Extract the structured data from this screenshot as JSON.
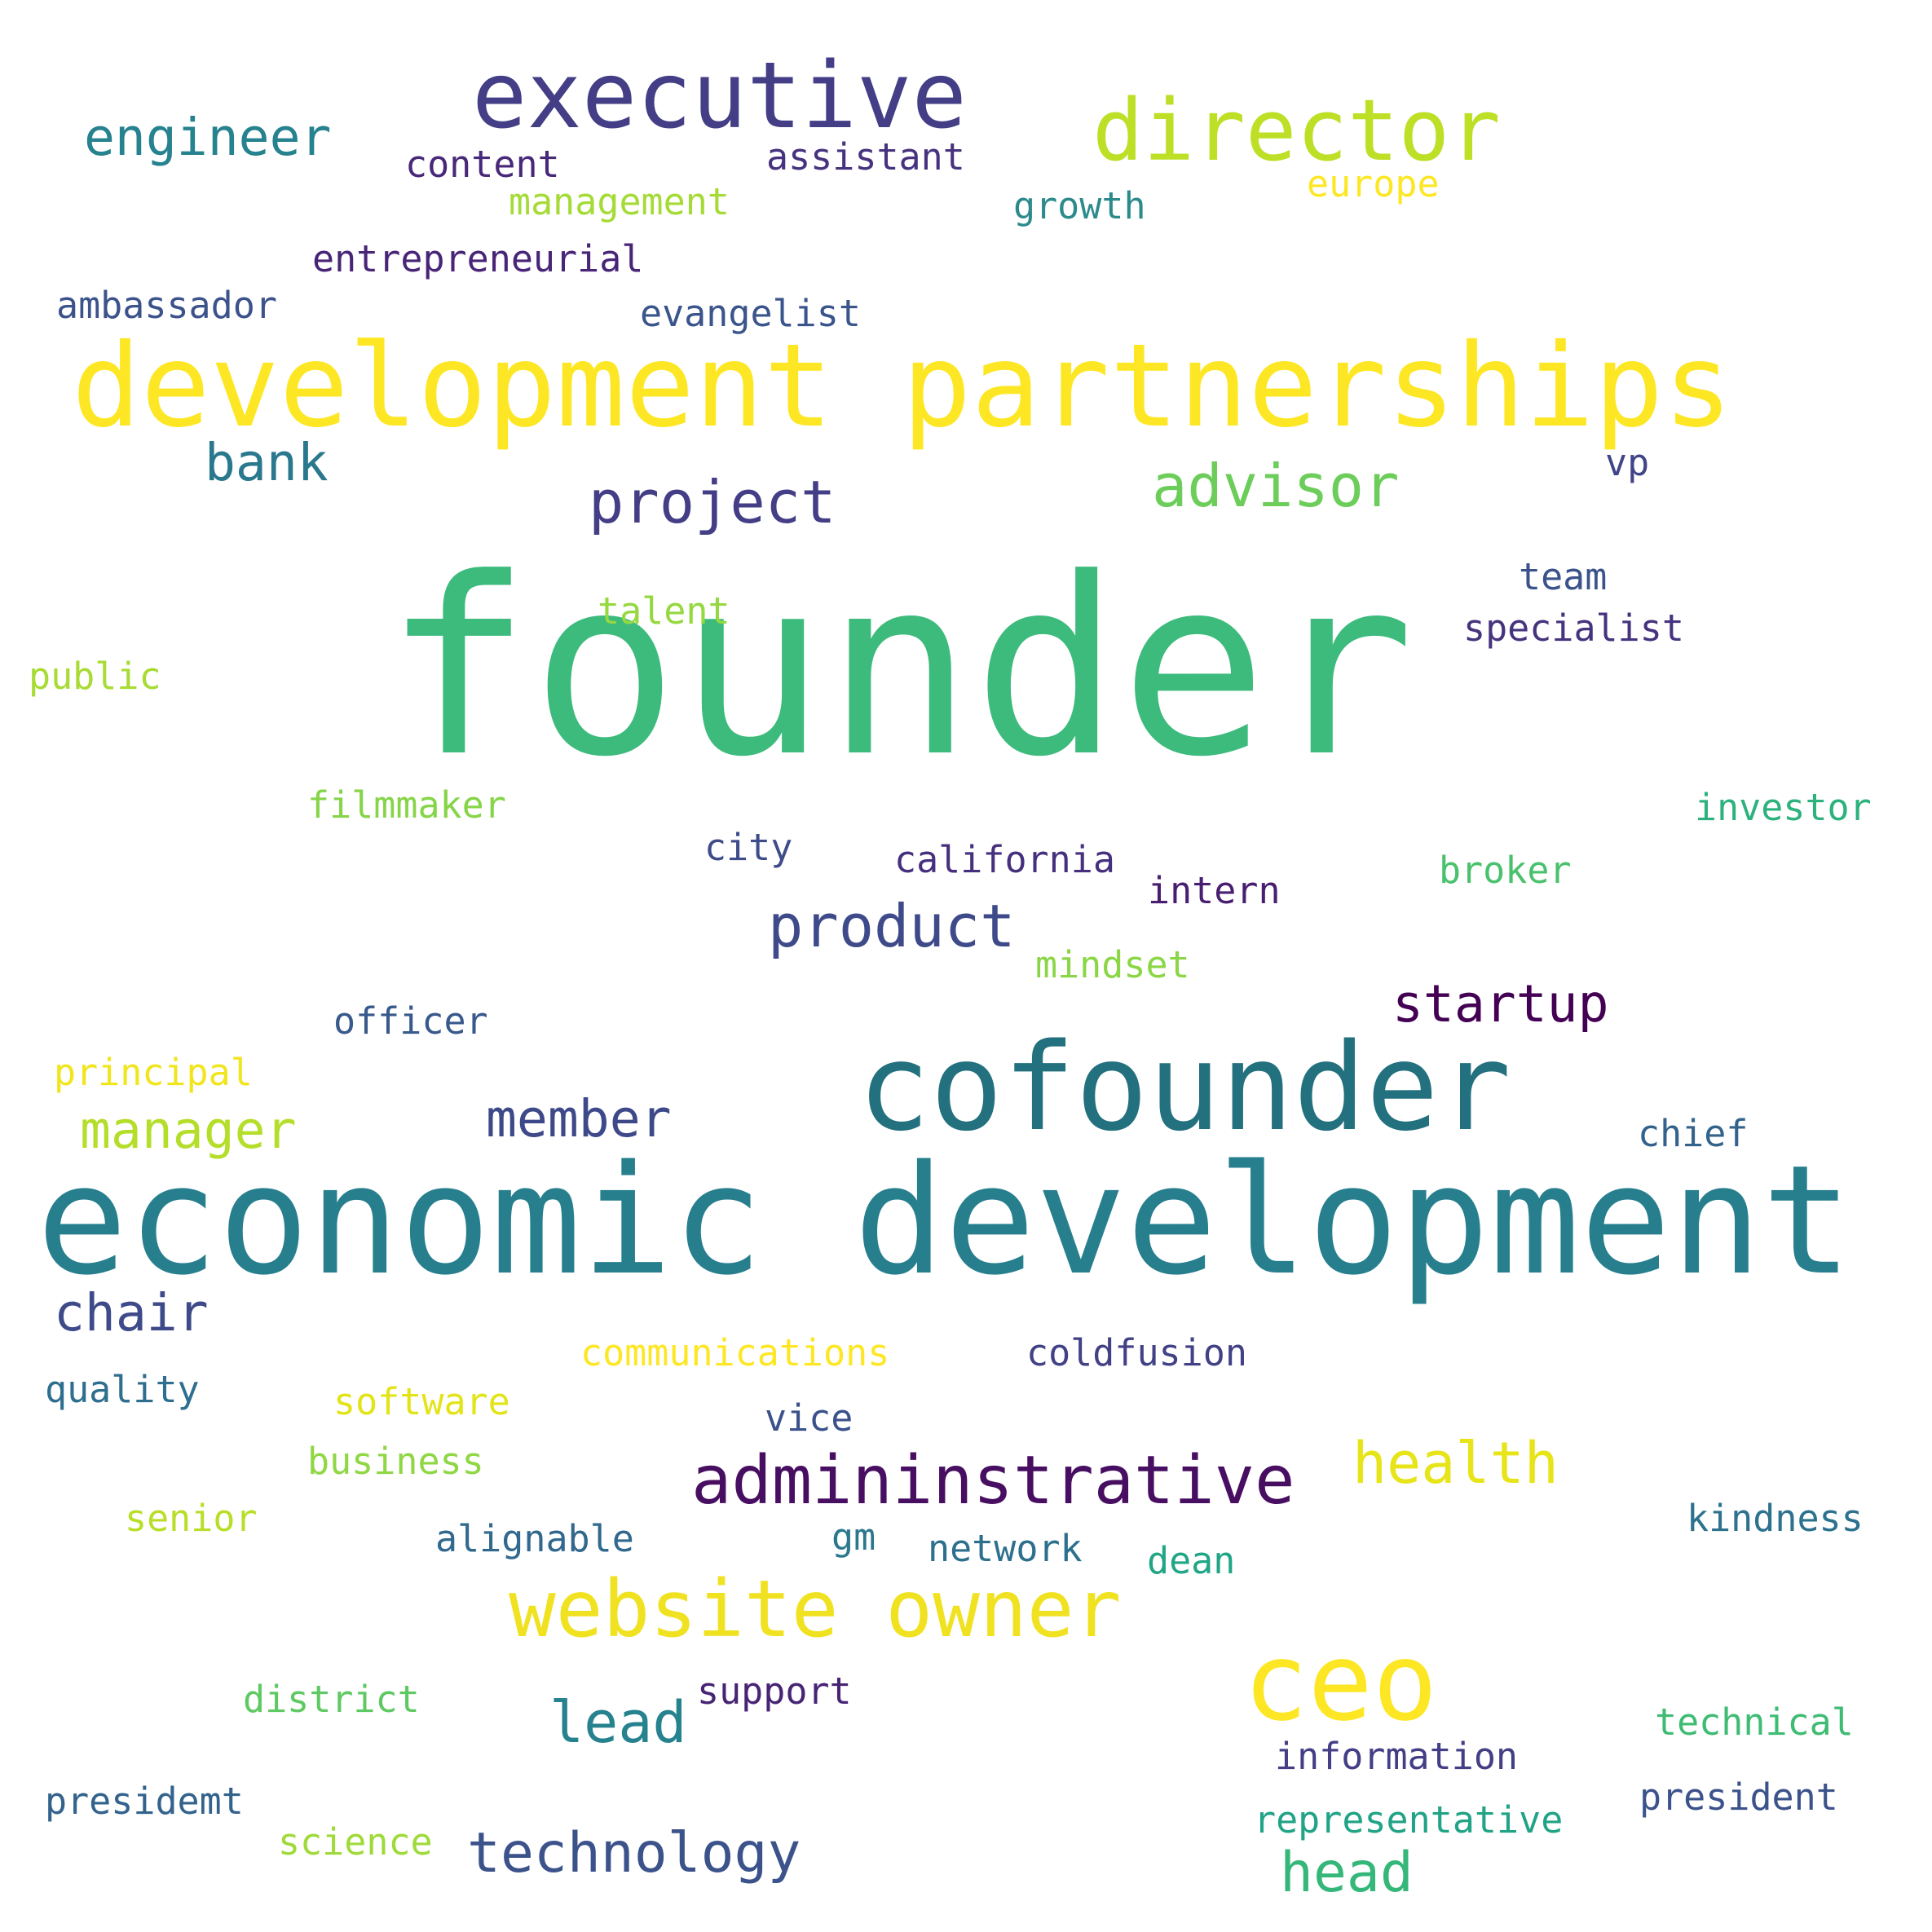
{
  "words": [
    {
      "text": "founder",
      "color": "#3dbb7c"
    },
    {
      "text": "economic development",
      "color": "#277f8e"
    },
    {
      "text": "development partnerships",
      "color": "#fde725"
    },
    {
      "text": "cofounder",
      "color": "#23707e"
    },
    {
      "text": "executive",
      "color": "#433e85"
    },
    {
      "text": "director",
      "color": "#bddf26"
    },
    {
      "text": "website owner",
      "color": "#f0e221"
    },
    {
      "text": "ceo",
      "color": "#fde725"
    },
    {
      "text": "admininstrative",
      "color": "#470e61"
    },
    {
      "text": "product",
      "color": "#3e4a89"
    },
    {
      "text": "project",
      "color": "#433e85"
    },
    {
      "text": "advisor",
      "color": "#6ccd5a"
    },
    {
      "text": "engineer",
      "color": "#26828e"
    },
    {
      "text": "bank",
      "color": "#2a788e"
    },
    {
      "text": "manager",
      "color": "#b5de2b"
    },
    {
      "text": "member",
      "color": "#3e4989"
    },
    {
      "text": "startup",
      "color": "#440154"
    },
    {
      "text": "chair",
      "color": "#3e4a89"
    },
    {
      "text": "health",
      "color": "#e7e419"
    },
    {
      "text": "lead",
      "color": "#26828e"
    },
    {
      "text": "technology",
      "color": "#3b528b"
    },
    {
      "text": "head",
      "color": "#35b779"
    },
    {
      "text": "content",
      "color": "#482878"
    },
    {
      "text": "assistant",
      "color": "#46327e"
    },
    {
      "text": "management",
      "color": "#a5db36"
    },
    {
      "text": "growth",
      "color": "#2c8a8c"
    },
    {
      "text": "europe",
      "color": "#fde725"
    },
    {
      "text": "entrepreneurial",
      "color": "#482576"
    },
    {
      "text": "ambassador",
      "color": "#3b528b"
    },
    {
      "text": "evangelist",
      "color": "#3a548c"
    },
    {
      "text": "vp",
      "color": "#414487"
    },
    {
      "text": "team",
      "color": "#3b528b"
    },
    {
      "text": "specialist",
      "color": "#46337e"
    },
    {
      "text": "talent",
      "color": "#95d840"
    },
    {
      "text": "public",
      "color": "#a8db34"
    },
    {
      "text": "filmmaker",
      "color": "#86d549"
    },
    {
      "text": "investor",
      "color": "#2db27d"
    },
    {
      "text": "city",
      "color": "#3e4c8a"
    },
    {
      "text": "california",
      "color": "#46307e"
    },
    {
      "text": "intern",
      "color": "#481f70"
    },
    {
      "text": "broker",
      "color": "#4ac16d"
    },
    {
      "text": "mindset",
      "color": "#8bd646"
    },
    {
      "text": "officer",
      "color": "#38598c"
    },
    {
      "text": "principal",
      "color": "#f1e51d"
    },
    {
      "text": "chief",
      "color": "#33638d"
    },
    {
      "text": "communications",
      "color": "#fde725"
    },
    {
      "text": "coldfusion",
      "color": "#424186"
    },
    {
      "text": "quality",
      "color": "#2e6e8e"
    },
    {
      "text": "software",
      "color": "#e2e418"
    },
    {
      "text": "vice",
      "color": "#3b518b"
    },
    {
      "text": "business",
      "color": "#8fd744"
    },
    {
      "text": "senior",
      "color": "#b8de29"
    },
    {
      "text": "alignable",
      "color": "#31688e"
    },
    {
      "text": "gm",
      "color": "#2a778e"
    },
    {
      "text": "network",
      "color": "#2d708e"
    },
    {
      "text": "dean",
      "color": "#21a685"
    },
    {
      "text": "kindness",
      "color": "#2c728e"
    },
    {
      "text": "district",
      "color": "#5ec962"
    },
    {
      "text": "support",
      "color": "#482475"
    },
    {
      "text": "technical",
      "color": "#3fbc73"
    },
    {
      "text": "information",
      "color": "#433e85"
    },
    {
      "text": "presidemt",
      "color": "#33638d"
    },
    {
      "text": "science",
      "color": "#9fda3a"
    },
    {
      "text": "representative",
      "color": "#20a386"
    },
    {
      "text": "president",
      "color": "#3b528b"
    }
  ]
}
